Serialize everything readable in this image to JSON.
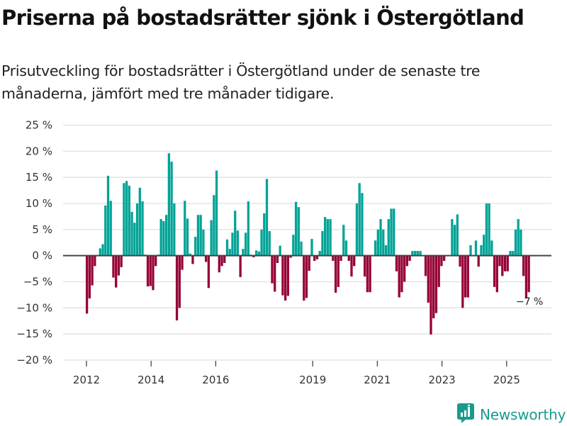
{
  "header": {
    "title": "Priserna på bostadsrätter sjönk i Östergötland",
    "subtitle": "Prisutveckling för bostadsrätter i Östergötland under de senaste tre månaderna, jämfört med tre månader tidigare."
  },
  "branding": {
    "logo_icon": "bar-chart-badge-icon",
    "name": "Newsworthy",
    "color": "#1a9a8c"
  },
  "chart_data": {
    "type": "bar",
    "title": "Priserna på bostadsrätter sjönk i Östergötland",
    "subtitle": "Prisutveckling för bostadsrätter i Östergötland under de senaste tre månaderna, jämfört med tre månader tidigare.",
    "xlabel": "",
    "ylabel": "",
    "unit": "%",
    "ylim": [
      -20,
      25
    ],
    "yticks": [
      25,
      20,
      15,
      10,
      5,
      0,
      -5,
      -10,
      -15,
      -20
    ],
    "ytick_labels": [
      "25 %",
      "20 %",
      "15 %",
      "10 %",
      "5 %",
      "0 %",
      "−5 %",
      "−10 %",
      "−15 %",
      "−20 %"
    ],
    "xticks": [
      2012,
      2014,
      2016,
      2019,
      2021,
      2023,
      2025
    ],
    "xtick_labels": [
      "2012",
      "2014",
      "2016",
      "2019",
      "2021",
      "2023",
      "2025"
    ],
    "x_start": "2012-01",
    "grid": true,
    "legend": "none",
    "colors": {
      "positive": "#00a396",
      "negative": "#960036",
      "zero_line": "#444444",
      "grid": "#e0e0e0"
    },
    "annotation": {
      "label": "−7 %",
      "target": "last"
    },
    "values": [
      -11.1,
      -8.2,
      -5.7,
      -2.0,
      0.1,
      1.4,
      2.2,
      9.6,
      15.3,
      10.5,
      -4.2,
      -6.1,
      -3.8,
      -2.2,
      13.9,
      14.3,
      13.4,
      8.4,
      6.3,
      10.0,
      13.0,
      10.4,
      0.2,
      -5.9,
      -5.8,
      -6.6,
      -2.0,
      0.2,
      7.0,
      6.6,
      7.8,
      19.6,
      18.0,
      10.0,
      -12.4,
      -10.0,
      -2.7,
      10.5,
      7.1,
      0.4,
      -1.6,
      3.6,
      7.8,
      7.8,
      5.0,
      -1.2,
      -6.2,
      6.8,
      11.6,
      16.3,
      -3.2,
      -2.0,
      -1.4,
      3.1,
      1.3,
      4.4,
      8.6,
      4.8,
      -4.1,
      1.3,
      4.4,
      10.4,
      0.2,
      -0.3,
      1.0,
      0.8,
      5.0,
      8.1,
      14.7,
      4.7,
      -5.3,
      -6.9,
      -1.4,
      1.9,
      -7.6,
      -8.6,
      -7.7,
      -0.4,
      4.0,
      10.3,
      9.3,
      2.7,
      -8.6,
      -8.1,
      -2.9,
      3.2,
      -1.0,
      -0.7,
      0.9,
      4.7,
      7.4,
      7.0,
      7.0,
      -1.0,
      -7.1,
      -6.0,
      -1.0,
      5.9,
      2.9,
      -1.0,
      -4.0,
      -2.0,
      10.0,
      13.9,
      12.0,
      -4.0,
      -7.0,
      -7.0,
      0.0,
      2.9,
      5.0,
      7.0,
      5.0,
      2.0,
      7.0,
      9.0,
      9.0,
      -3.0,
      -8.0,
      -7.0,
      -5.0,
      -2.0,
      -1.0,
      0.9,
      0.9,
      0.9,
      0.9,
      0.0,
      -3.9,
      -9.0,
      -15.1,
      -12.0,
      -11.0,
      -6.0,
      -2.0,
      -1.0,
      0.0,
      0.0,
      7.0,
      5.9,
      7.9,
      -2.1,
      -10.0,
      -8.0,
      -8.0,
      2.0,
      0.0,
      2.9,
      -2.1,
      2.0,
      4.0,
      10.0,
      10.0,
      2.9,
      -6.0,
      -7.0,
      -2.0,
      -3.9,
      -3.0,
      -3.0,
      0.9,
      0.9,
      5.0,
      7.0,
      5.0,
      -3.9,
      -8.2,
      -7.0
    ]
  }
}
